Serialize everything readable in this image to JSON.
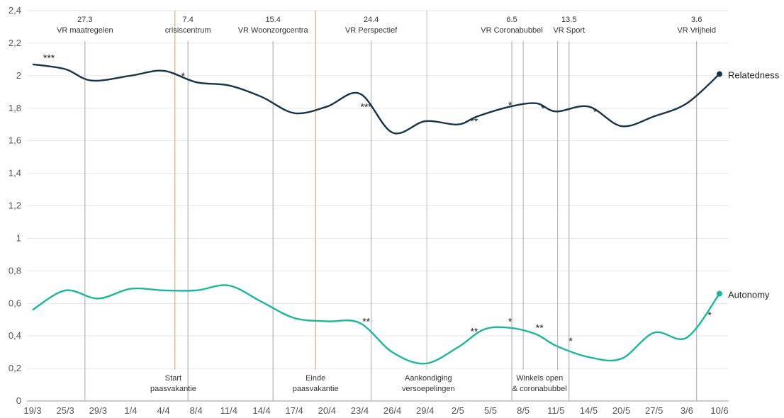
{
  "chart_data": {
    "type": "line",
    "xlabel": "",
    "ylabel": "",
    "ylim": [
      0,
      2.4
    ],
    "yticks": [
      "0",
      "0,2",
      "0,4",
      "0,6",
      "0,8",
      "1",
      "1,2",
      "1,4",
      "1,6",
      "1,8",
      "2",
      "2,2",
      "2,4"
    ],
    "xticks": [
      "19/3",
      "25/3",
      "29/3",
      "1/4",
      "4/4",
      "8/4",
      "11/4",
      "14/4",
      "17/4",
      "20/4",
      "23/4",
      "26/4",
      "29/4",
      "2/5",
      "5/5",
      "8/5",
      "11/5",
      "14/5",
      "20/5",
      "27/5",
      "3/6",
      "10/6"
    ],
    "grid": true,
    "series": [
      {
        "name": "Relatedness",
        "color": "#15334a",
        "points": [
          [
            0,
            2.07
          ],
          [
            1,
            2.04
          ],
          [
            1.8,
            1.97
          ],
          [
            3,
            2.0
          ],
          [
            4,
            2.03
          ],
          [
            5,
            1.96
          ],
          [
            6,
            1.94
          ],
          [
            7,
            1.87
          ],
          [
            8,
            1.77
          ],
          [
            9,
            1.81
          ],
          [
            10,
            1.89
          ],
          [
            11,
            1.65
          ],
          [
            12,
            1.72
          ],
          [
            13,
            1.7
          ],
          [
            13.6,
            1.75
          ],
          [
            14.6,
            1.81
          ],
          [
            15.4,
            1.83
          ],
          [
            16,
            1.78
          ],
          [
            17,
            1.81
          ],
          [
            18,
            1.69
          ],
          [
            19,
            1.75
          ],
          [
            20,
            1.83
          ],
          [
            21,
            2.01
          ]
        ]
      },
      {
        "name": "Autonomy",
        "color": "#1ab89b",
        "points": [
          [
            0,
            0.56
          ],
          [
            1,
            0.68
          ],
          [
            2,
            0.63
          ],
          [
            3,
            0.69
          ],
          [
            4,
            0.68
          ],
          [
            5,
            0.68
          ],
          [
            6,
            0.71
          ],
          [
            7,
            0.61
          ],
          [
            8,
            0.51
          ],
          [
            9,
            0.49
          ],
          [
            10,
            0.48
          ],
          [
            11,
            0.3
          ],
          [
            12,
            0.23
          ],
          [
            13,
            0.33
          ],
          [
            13.8,
            0.44
          ],
          [
            14.6,
            0.45
          ],
          [
            15.4,
            0.41
          ],
          [
            16,
            0.34
          ],
          [
            17,
            0.27
          ],
          [
            18,
            0.26
          ],
          [
            19,
            0.42
          ],
          [
            20,
            0.39
          ],
          [
            21,
            0.66
          ]
        ]
      }
    ],
    "events_top": [
      {
        "date": "27.3",
        "label": "VR maatregelen",
        "x": 1.6
      },
      {
        "date": "7.4",
        "label": "crisiscentrum",
        "x": 4.75
      },
      {
        "date": "15.4",
        "label": "VR Woonzorgcentra",
        "x": 7.35
      },
      {
        "date": "24.4",
        "label": "VR Perspectief",
        "x": 10.35
      },
      {
        "date": "6.5",
        "label": "VR Coronabubbel",
        "x": 14.65
      },
      {
        "date": "13.5",
        "label": "VR Sport",
        "x": 16.4
      },
      {
        "date": "3.6",
        "label": "VR Vrijheid",
        "x": 20.3
      }
    ],
    "events_bottom": [
      {
        "lines": [
          "Start",
          "paasvakantie"
        ],
        "x": 4.3
      },
      {
        "lines": [
          "Einde",
          "paasvakantie"
        ],
        "x": 8.65
      },
      {
        "lines": [
          "Aankondiging",
          "versoepelingen"
        ],
        "x": 12.1
      },
      {
        "lines": [
          "Winkels open",
          "& coronabubbel"
        ],
        "x": 15.5
      }
    ],
    "significance": [
      {
        "text": "***",
        "x": 0.5,
        "y": 2.11
      },
      {
        "text": "*",
        "x": 4.6,
        "y": 2.0
      },
      {
        "text": "***",
        "x": 10.2,
        "y": 1.81
      },
      {
        "text": "**",
        "x": 13.5,
        "y": 1.72
      },
      {
        "text": "*",
        "x": 14.6,
        "y": 1.82
      },
      {
        "text": "*",
        "x": 15.6,
        "y": 1.8
      },
      {
        "text": "*",
        "x": 17.2,
        "y": 1.78
      },
      {
        "text": "**",
        "x": 10.2,
        "y": 0.49
      },
      {
        "text": "**",
        "x": 13.5,
        "y": 0.43
      },
      {
        "text": "*",
        "x": 14.6,
        "y": 0.49
      },
      {
        "text": "**",
        "x": 15.5,
        "y": 0.45
      },
      {
        "text": "*",
        "x": 16.45,
        "y": 0.37
      },
      {
        "text": "*",
        "x": 20.7,
        "y": 0.53
      }
    ]
  }
}
